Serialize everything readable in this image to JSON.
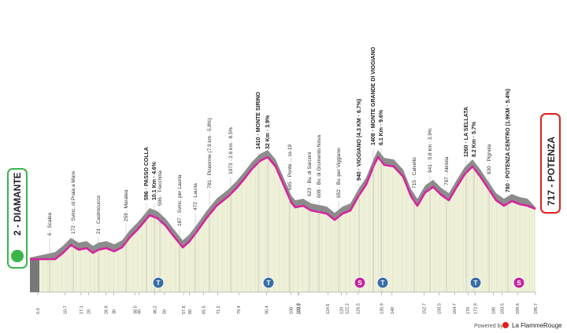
{
  "start": {
    "label": "2 - DIAMANTE"
  },
  "finish": {
    "label": "717 - POTENZA"
  },
  "waypoints": [
    "6 · Scalea",
    "172 · Svinc. di Praia a Mare",
    "21 · Castrocucco",
    "259 · Maratea",
    "596 · PASSO COLLA",
    "10.1 Km · 4.6%",
    "506 · Trecchina",
    "187 · Svinc. per Lauria",
    "472 · Lauria",
    "781 · Piceonne (7.9 km · 5.8%)",
    "1073 · 2.6 km · 8.5%",
    "1410 · MONTE SIRINO",
    "32 Km · 3.9%",
    "695 · Ponte ... ss.19",
    "623 · Bv. di Sarconi",
    "608 · Bv. di Grumento Nova",
    "652 · Bv. per Viggiano",
    "940 · VIGGIANO (4.3 KM · 6.7%)",
    "1408 · MONTE GRANDE DI VIGGIANO",
    "6.1 Km · 9.6%",
    "715 · Calvello",
    "941 · 5.8 km · 3.9%",
    "797 · Abriola",
    "1260 · LA SELLATA",
    "8.2 Km · 5.7%",
    "830 · Pignola",
    "780 · POTENZA CENTRO (1.9KM · 5.4%)"
  ],
  "icons": [
    "T",
    "T",
    "S",
    "T",
    "T",
    "S"
  ],
  "km_ticks": [
    "0.0",
    "10.7",
    "17.1",
    "20",
    "26.9",
    "30",
    "38.5",
    "40",
    "46.2",
    "50",
    "57.6",
    "60",
    "65.5",
    "71.2",
    "79.4",
    "90.4",
    "100",
    "102.8",
    "103.2",
    "114.6",
    "120",
    "122.2",
    "126.5",
    "135.9",
    "140",
    "152.7",
    "158.5",
    "164.7",
    "170",
    "172.9",
    "180",
    "183.5",
    "189.6",
    "196.7"
  ],
  "footer": {
    "powered": "Powered by",
    "brand": "La FlammeRouge"
  }
}
